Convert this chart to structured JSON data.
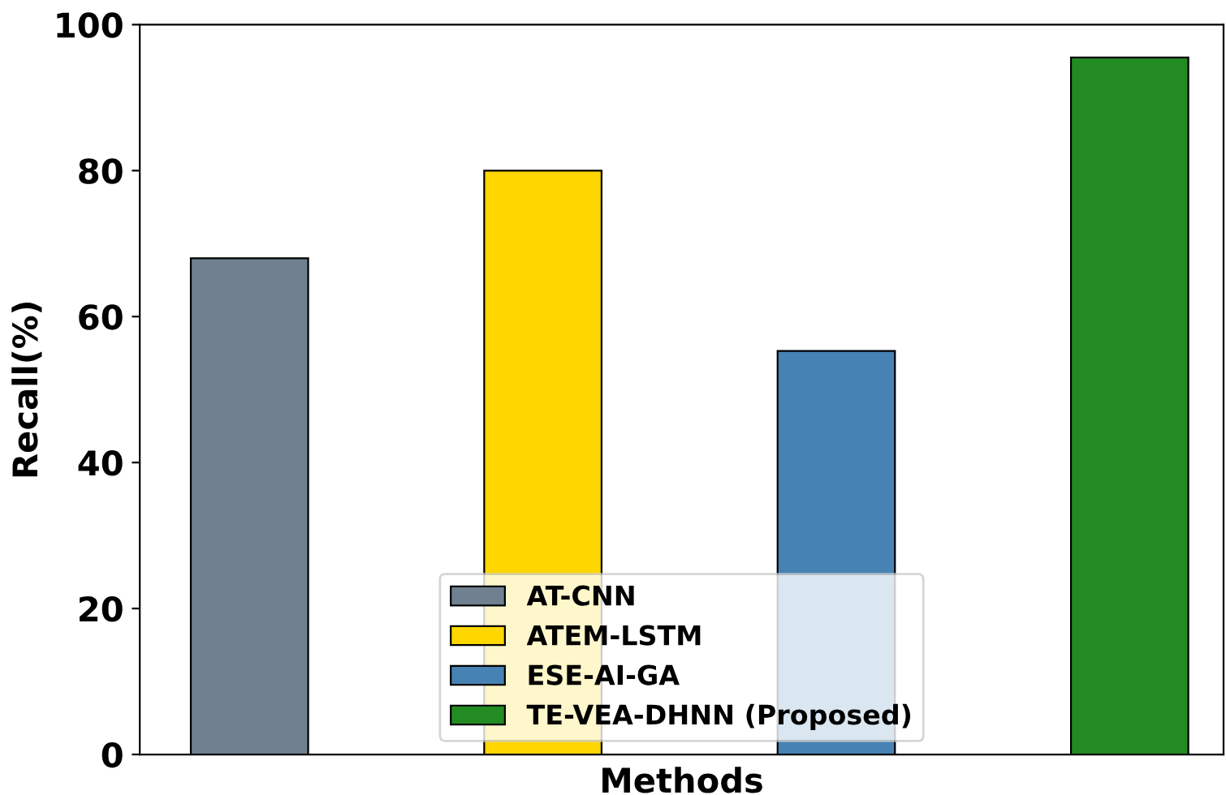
{
  "chart_data": {
    "type": "bar",
    "xlabel": "Methods",
    "ylabel": "Recall(%)",
    "categories": [
      null,
      null,
      null,
      null
    ],
    "series": [
      {
        "name": "AT-CNN",
        "color": "#708090",
        "values": [
          68,
          null,
          null,
          null
        ]
      },
      {
        "name": "ATEM-LSTM",
        "color": "#ffd700",
        "values": [
          null,
          80,
          null,
          null
        ]
      },
      {
        "name": "ESE-AI-GA",
        "color": "#4682b4",
        "values": [
          null,
          null,
          55.3,
          null
        ]
      },
      {
        "name": "TE-VEA-DHNN (Proposed)",
        "color": "#228b22",
        "values": [
          null,
          null,
          null,
          95.5
        ]
      }
    ],
    "ylim": [
      0,
      100
    ],
    "yticks": [
      0,
      20,
      40,
      60,
      80,
      100
    ],
    "grid": false,
    "legend": "bottom"
  }
}
